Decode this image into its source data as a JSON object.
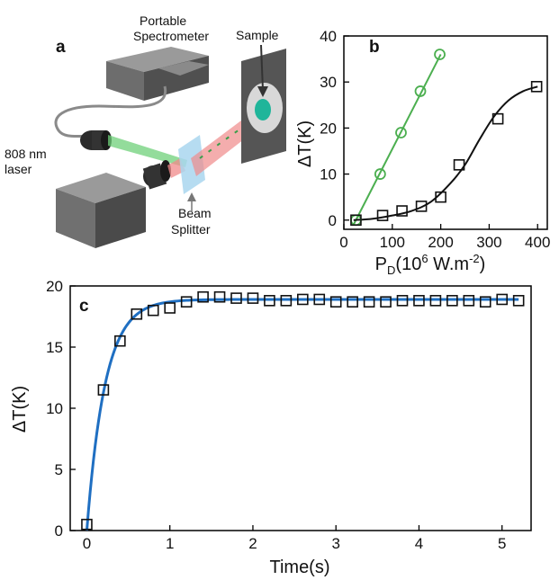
{
  "panel_a": {
    "letter": "a",
    "labels": {
      "spectrometer_line1": "Portable",
      "spectrometer_line2": "Spectrometer",
      "sample": "Sample",
      "laser_line1": "808 nm",
      "laser_line2": "laser",
      "splitter_line1": "Beam",
      "splitter_line2": "Splitter"
    },
    "colors": {
      "laser_beam": "#f08a8a",
      "signal_beam": "#6fd07a",
      "splitter": "#a9d6ee",
      "sample_spot": "#1fb59a"
    }
  },
  "chart_data": [
    {
      "panel": "b",
      "type": "scatter",
      "xlabel_main": "P",
      "xlabel_sub": "D",
      "xlabel_rest": "(10",
      "xlabel_sup": "6",
      "xlabel_tail": " W.m",
      "xlabel_sup2": "-2",
      "xlabel_end": ")",
      "ylabel": "ΔT(K)",
      "xlim": [
        0,
        420
      ],
      "ylim": [
        -2,
        40
      ],
      "xticks": [
        "0",
        "100",
        "200",
        "300",
        "400"
      ],
      "yticks": [
        "0",
        "10",
        "20",
        "30",
        "40"
      ],
      "series": [
        {
          "marker": "circle",
          "color": "#4caf50",
          "x": [
            25,
            75,
            118,
            158,
            198
          ],
          "y": [
            0,
            10,
            19,
            28,
            36
          ],
          "fit": {
            "x": [
              20,
              200
            ],
            "y": [
              -1,
              36
            ]
          }
        },
        {
          "marker": "square",
          "color": "#111111",
          "x": [
            25,
            80,
            120,
            160,
            200,
            238,
            318,
            398
          ],
          "y": [
            0,
            1,
            2,
            3,
            5,
            12,
            22,
            29
          ],
          "fit_curve": {
            "x": [
              20,
              60,
              100,
              140,
              180,
              220,
              250,
              280,
              310,
              340,
              370,
              400
            ],
            "y": [
              0,
              0.3,
              1,
              2,
              4,
              8,
              12,
              17.5,
              22.5,
              26,
              28,
              29
            ]
          }
        }
      ]
    },
    {
      "panel": "c",
      "type": "scatter",
      "xlabel": "Time(s)",
      "ylabel": "ΔT(K)",
      "xlim": [
        -0.2,
        5.35
      ],
      "ylim": [
        0,
        20
      ],
      "xticks": [
        "0",
        "1",
        "2",
        "3",
        "4",
        "5"
      ],
      "yticks": [
        "0",
        "5",
        "10",
        "15",
        "20"
      ],
      "series": [
        {
          "marker": "square",
          "color": "#111111",
          "x": [
            0,
            0.2,
            0.4,
            0.6,
            0.8,
            1.0,
            1.2,
            1.4,
            1.6,
            1.8,
            2.0,
            2.2,
            2.4,
            2.6,
            2.8,
            3.0,
            3.2,
            3.4,
            3.6,
            3.8,
            4.0,
            4.2,
            4.4,
            4.6,
            4.8,
            5.0,
            5.2
          ],
          "y": [
            0.5,
            11.5,
            15.5,
            17.7,
            18.0,
            18.2,
            18.7,
            19.1,
            19.1,
            19.0,
            19.0,
            18.8,
            18.8,
            18.9,
            18.9,
            18.7,
            18.7,
            18.7,
            18.7,
            18.8,
            18.8,
            18.8,
            18.8,
            18.8,
            18.7,
            18.9,
            18.8
          ]
        }
      ],
      "fit": {
        "color": "#1f6fc2",
        "plateau": 18.9,
        "tau": 0.22
      }
    }
  ]
}
